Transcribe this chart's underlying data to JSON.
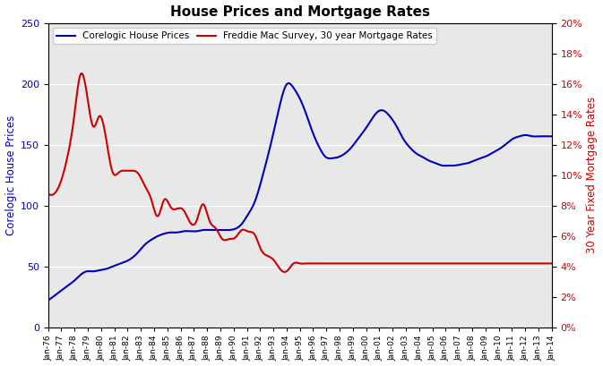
{
  "title": "House Prices and Mortgage Rates",
  "ylabel_left": "Corelogic House Prices",
  "ylabel_right": "30 Year Fixed Mortgage Rates",
  "legend_blue": "Corelogic House Prices",
  "legend_red": "Freddie Mac Survey, 30 year Mortgage Rates",
  "ylim_left": [
    0,
    250
  ],
  "ylim_right": [
    0,
    20
  ],
  "yticks_left": [
    0,
    50,
    100,
    150,
    200,
    250
  ],
  "yticks_right": [
    0,
    2,
    4,
    6,
    8,
    10,
    12,
    14,
    16,
    18,
    20
  ],
  "background_color": "#ffffff",
  "plot_bg_color": "#e8e8e8",
  "blue_color": "#0000bb",
  "red_color": "#cc0000",
  "x_tick_labels": [
    "Jan-76",
    "Jan-77",
    "Jan-78",
    "Jan-79",
    "Jan-80",
    "Jan-81",
    "Jan-82",
    "Jan-83",
    "Jan-84",
    "Jan-85",
    "Jan-86",
    "Jan-87",
    "Jan-88",
    "Jan-89",
    "Jan-90",
    "Jan-91",
    "Jan-92",
    "Jan-93",
    "Jan-94",
    "Jan-95",
    "Jan-96",
    "Jan-97",
    "Jan-98",
    "Jan-99",
    "Jan-00",
    "Jan-01",
    "Jan-02",
    "Jan-03",
    "Jan-04",
    "Jan-05",
    "Jan-06",
    "Jan-07",
    "Jan-08",
    "Jan-09",
    "Jan-10",
    "Jan-11",
    "Jan-12",
    "Jan-13",
    "Jan-14"
  ],
  "house_prices_annual": [
    22,
    26,
    30,
    34,
    38,
    43,
    46,
    46,
    47,
    48,
    50,
    52,
    54,
    57,
    62,
    68,
    72,
    75,
    77,
    78,
    78,
    79,
    79,
    79,
    80,
    80,
    80,
    80,
    80,
    81,
    85,
    93,
    103,
    120,
    140,
    162,
    185,
    200,
    197,
    188,
    175,
    160,
    148,
    140,
    139,
    140,
    143,
    148,
    155,
    162,
    170,
    177,
    178,
    173,
    165,
    155,
    148,
    143,
    140,
    137,
    135,
    133,
    133,
    133,
    134,
    135,
    137,
    139,
    141,
    144,
    147,
    151,
    155,
    157,
    158,
    157,
    157,
    157,
    157
  ],
  "mortgage_rates_annual": [
    8.8,
    8.8,
    9.6,
    11.2,
    13.7,
    16.6,
    15.4,
    13.2,
    13.9,
    12.4,
    10.2,
    10.2,
    10.3,
    10.3,
    10.1,
    9.3,
    8.4,
    7.3,
    8.4,
    7.9,
    7.8,
    7.7,
    6.9,
    7.0,
    8.1,
    7.0,
    6.5,
    5.8,
    5.8,
    5.9,
    6.4,
    6.3,
    6.1,
    5.1,
    4.7,
    4.4,
    3.8,
    3.7,
    4.2,
    4.2,
    4.2,
    4.2,
    4.2,
    4.2,
    4.2,
    4.2,
    4.2,
    4.2,
    4.2,
    4.2,
    4.2,
    4.2,
    4.2,
    4.2,
    4.2,
    4.2,
    4.2,
    4.2,
    4.2,
    4.2,
    4.2,
    4.2,
    4.2,
    4.2,
    4.2,
    4.2,
    4.2,
    4.2,
    4.2,
    4.2,
    4.2,
    4.2,
    4.2,
    4.2,
    4.2,
    4.2,
    4.2,
    4.2,
    4.2
  ]
}
